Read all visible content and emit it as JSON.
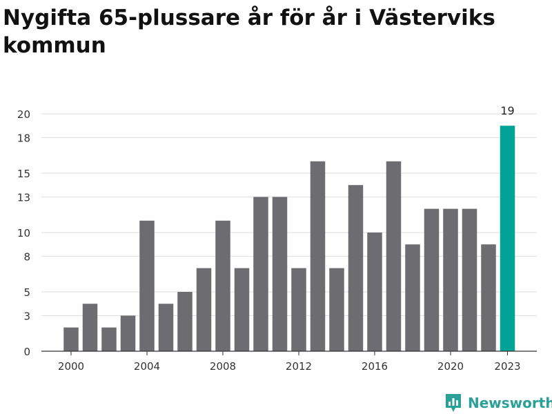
{
  "title": "Nygifta 65-plussare år för år i Västerviks kommun",
  "brand": {
    "name": "Newsworthy",
    "icon": "newsworthy-logo-icon",
    "color": "#2aa198"
  },
  "colors": {
    "bar": "#6d6c70",
    "highlight": "#00a395",
    "grid": "#dddddd",
    "axis": "#333333"
  },
  "chart_data": {
    "type": "bar",
    "title": "Nygifta 65-plussare år för år i Västerviks kommun",
    "categories": [
      2000,
      2001,
      2002,
      2003,
      2004,
      2005,
      2006,
      2007,
      2008,
      2009,
      2010,
      2011,
      2012,
      2013,
      2014,
      2015,
      2016,
      2017,
      2018,
      2019,
      2020,
      2021,
      2022,
      2023
    ],
    "values": [
      2,
      4,
      2,
      3,
      11,
      4,
      5,
      7,
      11,
      7,
      13,
      13,
      7,
      16,
      7,
      14,
      10,
      16,
      9,
      12,
      12,
      12,
      9,
      19
    ],
    "xticks": [
      2000,
      2004,
      2008,
      2012,
      2016,
      2020,
      2023
    ],
    "yticks": [
      0,
      3,
      5,
      8,
      10,
      13,
      15,
      18,
      20
    ],
    "ylim": [
      0,
      20
    ],
    "highlight": {
      "category": 2023,
      "label": "19"
    },
    "grid": true,
    "xlabel": "",
    "ylabel": ""
  }
}
